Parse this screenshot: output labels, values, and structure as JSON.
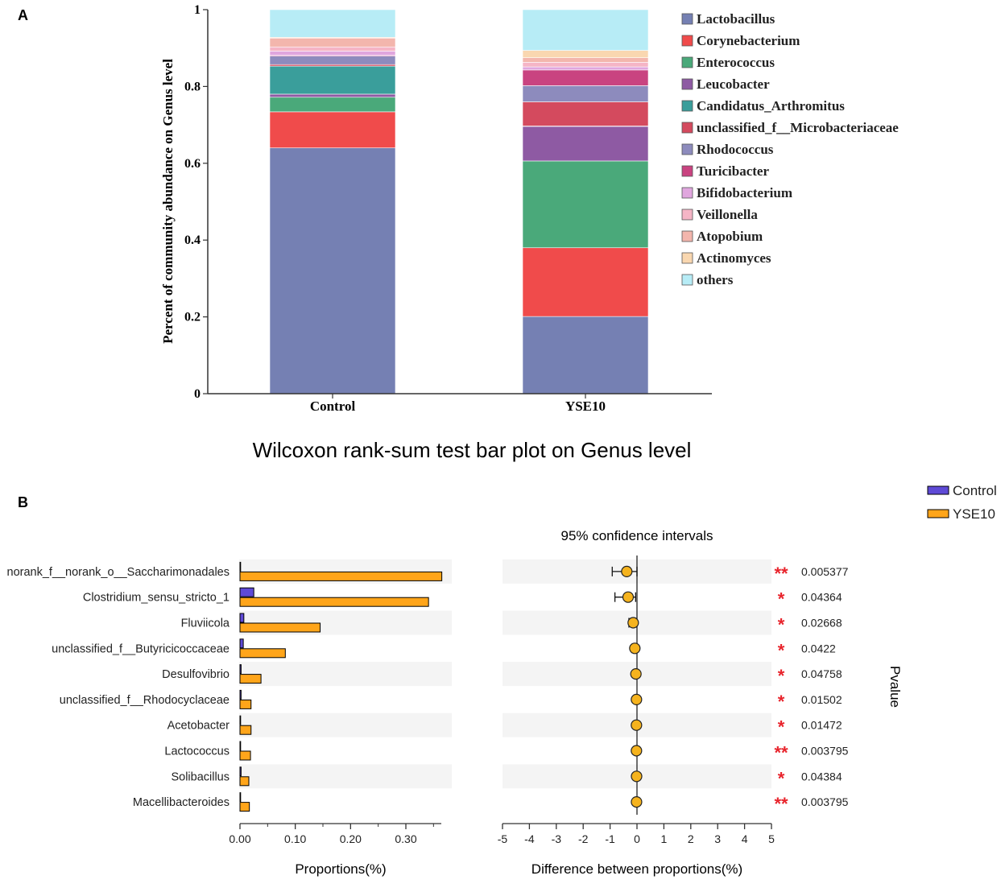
{
  "panel_a_letter": "A",
  "panel_b_letter": "B",
  "panel_b_title": "Wilcoxon rank-sum test bar plot on Genus level",
  "chart_data": [
    {
      "type": "bar",
      "stacked": true,
      "title": "",
      "xlabel": "",
      "ylabel": "Percent of community abundance on Genus level",
      "ylim": [
        0,
        1
      ],
      "yticks": [
        {
          "v": 0,
          "label": "0"
        },
        {
          "v": 0.2,
          "label": "0.2"
        },
        {
          "v": 0.4,
          "label": "0.4"
        },
        {
          "v": 0.6,
          "label": "0.6"
        },
        {
          "v": 0.8,
          "label": "0.8"
        },
        {
          "v": 1,
          "label": "1"
        }
      ],
      "categories": [
        "Control",
        "YSE10"
      ],
      "legend_position": "right",
      "series": [
        {
          "name": "Lactobacillus",
          "color": "#7580b3",
          "values": [
            0.64,
            0.201
          ]
        },
        {
          "name": "Corynebacterium",
          "color": "#f04b4b",
          "values": [
            0.094,
            0.179
          ]
        },
        {
          "name": "Enterococcus",
          "color": "#4aa97a",
          "values": [
            0.038,
            0.226
          ]
        },
        {
          "name": "Leucobacter",
          "color": "#8e5aa3",
          "values": [
            0.008,
            0.09
          ]
        },
        {
          "name": "Candidatus_Arthromitus",
          "color": "#3a9e9b",
          "values": [
            0.073,
            0.001
          ]
        },
        {
          "name": "unclassified_f__Microbacteriaceae",
          "color": "#d44a5e",
          "values": [
            0.004,
            0.063
          ]
        },
        {
          "name": "Rhodococcus",
          "color": "#8d8bbd",
          "values": [
            0.022,
            0.042
          ]
        },
        {
          "name": "Turicibacter",
          "color": "#c94380",
          "values": [
            0.002,
            0.041
          ]
        },
        {
          "name": "Bifidobacterium",
          "color": "#e0a6de",
          "values": [
            0.011,
            0.008
          ]
        },
        {
          "name": "Veillonella",
          "color": "#f5b5c6",
          "values": [
            0.011,
            0.012
          ]
        },
        {
          "name": "Atopobium",
          "color": "#f3b6ad",
          "values": [
            0.023,
            0.012
          ]
        },
        {
          "name": "Actinomyces",
          "color": "#f9d7b0",
          "values": [
            0.002,
            0.019
          ]
        },
        {
          "name": "others",
          "color": "#b7ecf6",
          "values": [
            0.072,
            0.106
          ]
        }
      ]
    },
    {
      "type": "bar",
      "orientation": "horizontal",
      "title": "",
      "xlabel": "Proportions(%)",
      "xlim": [
        0,
        0.37
      ],
      "xticks": [
        {
          "v": 0,
          "label": "0.00"
        },
        {
          "v": 0.1,
          "label": "0.10"
        },
        {
          "v": 0.2,
          "label": "0.20"
        },
        {
          "v": 0.3,
          "label": "0.30"
        }
      ],
      "categories": [
        "norank_f__norank_o__Saccharimonadales",
        "Clostridium_sensu_stricto_1",
        "Fluviicola",
        "unclassified_f__Butyricicoccaceae",
        "Desulfovibrio",
        "unclassified_f__Rhodocyclaceae",
        "Acetobacter",
        "Lactococcus",
        "Solibacillus",
        "Macellibacteroides"
      ],
      "legend_position": "top-right",
      "series": [
        {
          "name": "Control",
          "color": "#5e4ad6",
          "values": [
            0.0,
            0.025,
            0.007,
            0.006,
            0.002,
            0.002,
            0.001,
            0.001,
            0.002,
            0.001
          ]
        },
        {
          "name": "YSE10",
          "color": "#ffa51a",
          "values": [
            0.365,
            0.341,
            0.145,
            0.082,
            0.038,
            0.02,
            0.02,
            0.019,
            0.016,
            0.017
          ]
        }
      ]
    },
    {
      "type": "scatter",
      "title": "95% confidence intervals",
      "xlabel": "Difference between proportions(%)",
      "xlim": [
        -5,
        5
      ],
      "xticks": [
        {
          "v": -5,
          "label": "-5"
        },
        {
          "v": -4,
          "label": "-4"
        },
        {
          "v": -3,
          "label": "-3"
        },
        {
          "v": -2,
          "label": "-2"
        },
        {
          "v": -1,
          "label": "-1"
        },
        {
          "v": 0,
          "label": "0"
        },
        {
          "v": 1,
          "label": "1"
        },
        {
          "v": 2,
          "label": "2"
        },
        {
          "v": 3,
          "label": "3"
        },
        {
          "v": 4,
          "label": "4"
        },
        {
          "v": 5,
          "label": "5"
        }
      ],
      "ylabel_right": "Pvalue",
      "point_color": "#f5b31e",
      "star_color": "#e8242c",
      "points": [
        {
          "category": "norank_f__norank_o__Saccharimonadales",
          "diff": -0.38,
          "ci": [
            -0.92,
            0.0
          ],
          "stars": "**",
          "pvalue": "0.005377"
        },
        {
          "category": "Clostridium_sensu_stricto_1",
          "diff": -0.33,
          "ci": [
            -0.82,
            -0.05
          ],
          "stars": "*",
          "pvalue": "0.04364"
        },
        {
          "category": "Fluviicola",
          "diff": -0.14,
          "ci": [
            -0.3,
            -0.02
          ],
          "stars": "*",
          "pvalue": "0.02668"
        },
        {
          "category": "unclassified_f__Butyricicoccaceae",
          "diff": -0.08,
          "ci": [
            -0.18,
            0.0
          ],
          "stars": "*",
          "pvalue": "0.0422"
        },
        {
          "category": "Desulfovibrio",
          "diff": -0.04,
          "ci": [
            -0.1,
            0.0
          ],
          "stars": "*",
          "pvalue": "0.04758"
        },
        {
          "category": "unclassified_f__Rhodocyclaceae",
          "diff": -0.02,
          "ci": [
            -0.05,
            0.0
          ],
          "stars": "*",
          "pvalue": "0.01502"
        },
        {
          "category": "Acetobacter",
          "diff": -0.02,
          "ci": [
            -0.05,
            0.0
          ],
          "stars": "*",
          "pvalue": "0.01472"
        },
        {
          "category": "Lactococcus",
          "diff": -0.02,
          "ci": [
            -0.04,
            0.0
          ],
          "stars": "**",
          "pvalue": "0.003795"
        },
        {
          "category": "Solibacillus",
          "diff": -0.015,
          "ci": [
            -0.04,
            0.0
          ],
          "stars": "*",
          "pvalue": "0.04384"
        },
        {
          "category": "Macellibacteroides",
          "diff": -0.017,
          "ci": [
            -0.04,
            0.0
          ],
          "stars": "**",
          "pvalue": "0.003795"
        }
      ]
    }
  ]
}
